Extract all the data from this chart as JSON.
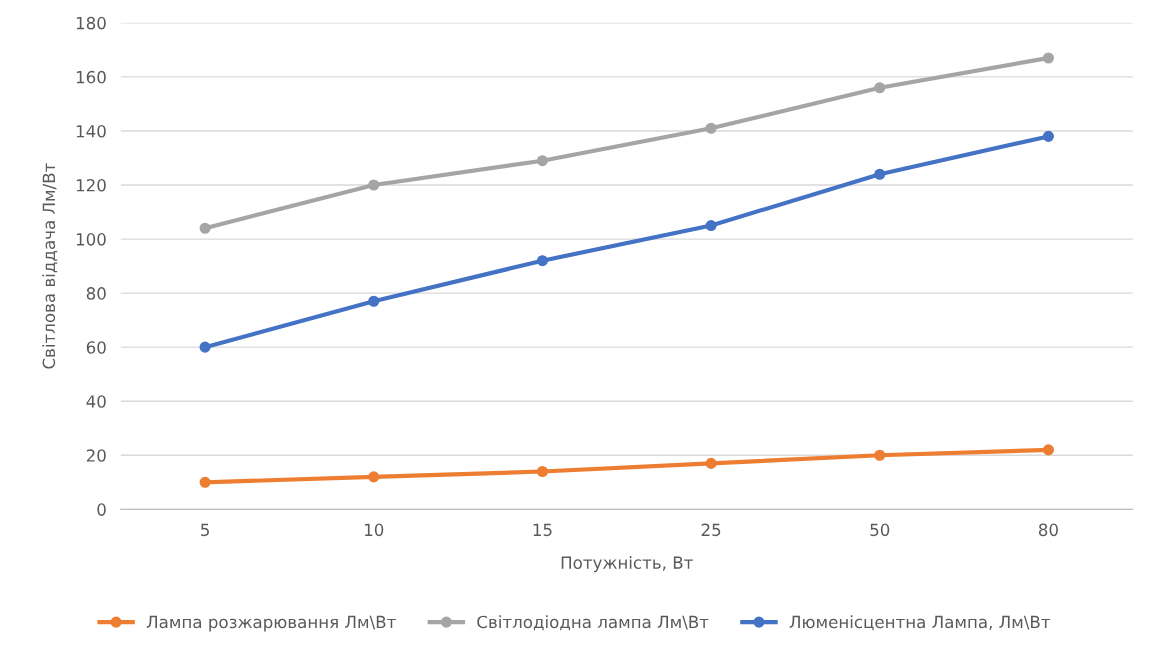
{
  "chart_data": {
    "type": "line",
    "xlabel": "Потужність, Вт",
    "ylabel": "Світлова віддача Лм/Вт",
    "categories": [
      "5",
      "10",
      "15",
      "25",
      "50",
      "80"
    ],
    "series": [
      {
        "name": "Лампа розжарювання Лм\\Вт",
        "color": "#ed7d31",
        "values": [
          10,
          12,
          14,
          17,
          20,
          22
        ]
      },
      {
        "name": "Світлодіодна лампа Лм\\Вт",
        "color": "#a5a5a5",
        "values": [
          104,
          120,
          129,
          141,
          156,
          167
        ]
      },
      {
        "name": "Люменісцентна Лампа, Лм\\Вт",
        "color": "#4472c4",
        "values": [
          60,
          77,
          92,
          105,
          124,
          138
        ]
      }
    ],
    "ylim": [
      0,
      180
    ],
    "yticks": [
      0,
      20,
      40,
      60,
      80,
      100,
      120,
      140,
      160,
      180
    ],
    "grid": "y",
    "legend": "bottom",
    "marker": "circle",
    "line_style": "solid"
  }
}
